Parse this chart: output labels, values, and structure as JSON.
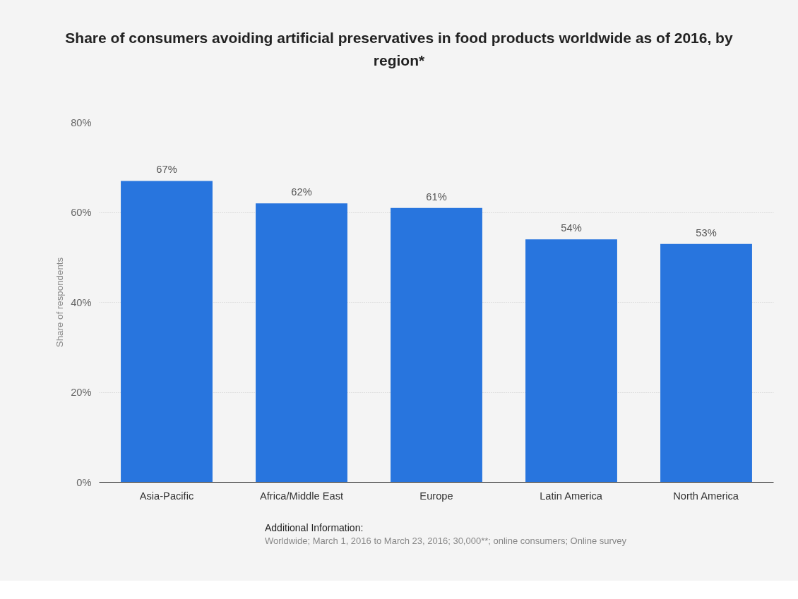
{
  "chart_data": {
    "type": "bar",
    "title": "Share of consumers avoiding artificial preservatives in food products worldwide as of 2016, by region*",
    "ylabel": "Share of respondents",
    "categories": [
      "Asia-Pacific",
      "Africa/Middle East",
      "Europe",
      "Latin America",
      "North America"
    ],
    "values": [
      67,
      62,
      61,
      54,
      53
    ],
    "color": "#2875de",
    "value_labels": [
      "67%",
      "62%",
      "61%",
      "54%",
      "53%"
    ],
    "ylim": [
      0,
      80
    ],
    "yticks": [
      {
        "value": 0,
        "label": "0%"
      },
      {
        "value": 20,
        "label": "20%"
      },
      {
        "value": 40,
        "label": "40%"
      },
      {
        "value": 60,
        "label": "60%"
      },
      {
        "value": 80,
        "label": "80%"
      }
    ],
    "grid": "y",
    "annotations": [
      "Additional Information:",
      "Worldwide; March 1, 2016 to March 23, 2016; 30,000**; online consumers; Online survey"
    ]
  }
}
